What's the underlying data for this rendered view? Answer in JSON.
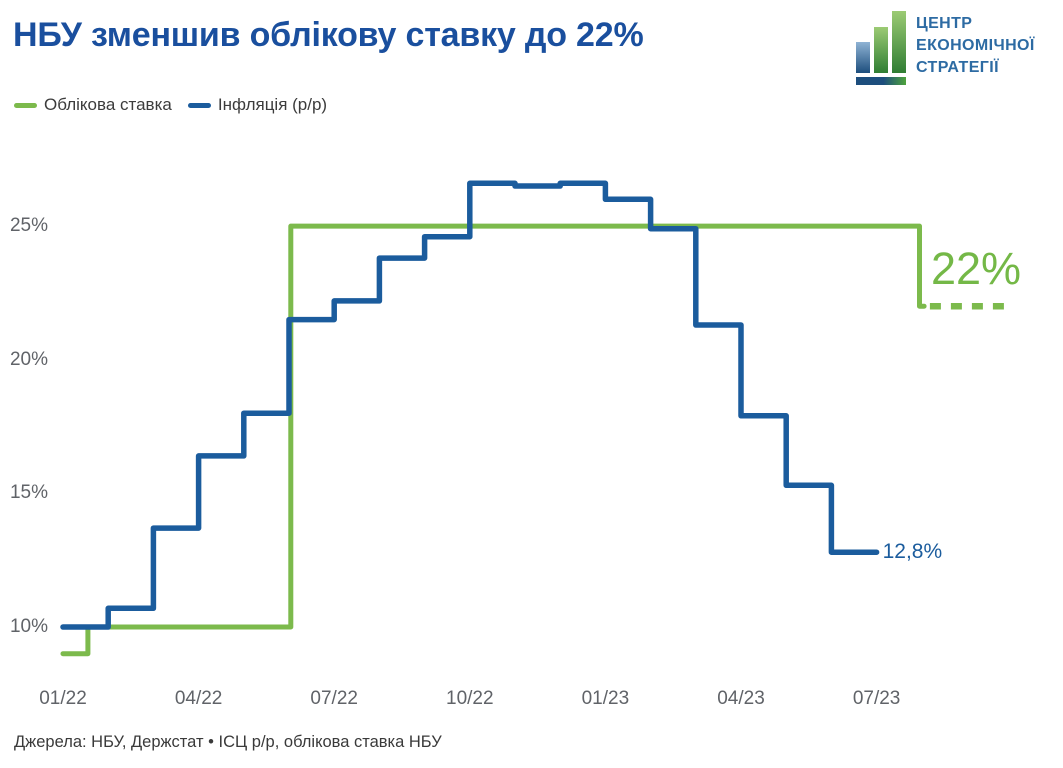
{
  "header": {
    "title": "НБУ зменшив облікову ставку до 22%",
    "logo": {
      "line1": "ЦЕНТР",
      "line2": "ЕКОНОМІЧНОЇ",
      "line3": "СТРАТЕГІЇ"
    }
  },
  "legend": {
    "items": [
      {
        "label": "Облікова ставка",
        "color": "#7cba4c"
      },
      {
        "label": "Інфляція (р/р)",
        "color": "#1b5c9d"
      }
    ]
  },
  "chart_data": {
    "type": "line",
    "title": "НБУ зменшив облікову ставку до 22%",
    "x_unit": "months since 01/2022 (fractional index)",
    "x_ticks": [
      {
        "month": 0,
        "label": "01/22"
      },
      {
        "month": 3,
        "label": "04/22"
      },
      {
        "month": 6,
        "label": "07/22"
      },
      {
        "month": 9,
        "label": "10/22"
      },
      {
        "month": 12,
        "label": "01/23"
      },
      {
        "month": 15,
        "label": "04/23"
      },
      {
        "month": 18,
        "label": "07/23"
      }
    ],
    "y_ticks": [
      {
        "value": 10,
        "label": "10%"
      },
      {
        "value": 15,
        "label": "15%"
      },
      {
        "value": 20,
        "label": "20%"
      },
      {
        "value": 25,
        "label": "25%"
      }
    ],
    "ylim": [
      8.5,
      27.8
    ],
    "grid": false,
    "legend_position": "top-left",
    "series": [
      {
        "name": "Облікова ставка",
        "color": "#7cba4c",
        "style": "step",
        "points": [
          [
            0,
            9
          ],
          [
            0.55,
            9
          ],
          [
            0.55,
            10
          ],
          [
            5.04,
            10
          ],
          [
            5.04,
            25
          ],
          [
            18.95,
            25
          ],
          [
            18.95,
            22
          ],
          [
            19.05,
            22
          ]
        ],
        "dashed_tail": [
          [
            19.18,
            22
          ],
          [
            20.9,
            22
          ]
        ],
        "changes": [
          {
            "date": "01/22",
            "value": 9
          },
          {
            "date": "late 01/22",
            "value": 10
          },
          {
            "date": "06/22",
            "value": 25
          },
          {
            "date": "late 07/23",
            "value": 22
          }
        ],
        "end_label": "22%"
      },
      {
        "name": "Інфляція (р/р)",
        "color": "#1b5c9d",
        "style": "step",
        "months": [
          "01/22",
          "02/22",
          "03/22",
          "04/22",
          "05/22",
          "06/22",
          "07/22",
          "08/22",
          "09/22",
          "10/22",
          "11/22",
          "12/22",
          "01/23",
          "02/23",
          "03/23",
          "04/23",
          "05/23",
          "06/23"
        ],
        "values": [
          10.0,
          10.7,
          13.7,
          16.4,
          18.0,
          21.5,
          22.2,
          23.8,
          24.6,
          26.6,
          26.5,
          26.6,
          26.0,
          24.9,
          21.3,
          17.9,
          15.3,
          12.8
        ],
        "end_label": "12,8%"
      }
    ]
  },
  "footer": {
    "source": "Джерела: НБУ, Держстат • ІСЦ р/р, облікова ставка НБУ"
  },
  "colors": {
    "title_blue": "#1a4f9e",
    "line_green": "#7cba4c",
    "line_blue": "#1b5c9d",
    "annotation_green": "#74b847",
    "axis_text": "#606368",
    "logo_blue": "#2d6ba3"
  }
}
